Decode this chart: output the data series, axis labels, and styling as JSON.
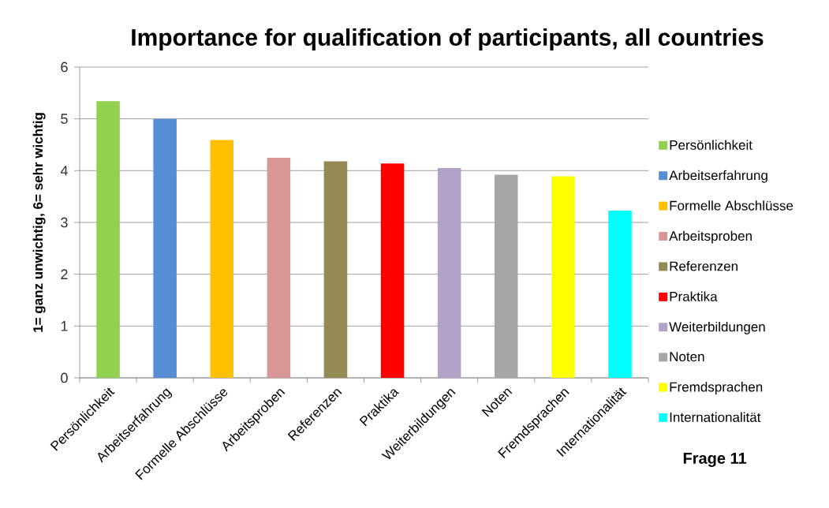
{
  "chart_data": {
    "type": "bar",
    "title": "Importance for qualification of participants, all countries",
    "ylabel": "1= ganz unwichtig, 6= sehr wichtig",
    "categories": [
      "Persönlichkeit",
      "Arbeitserfahrung",
      "Formelle Abschlüsse",
      "Arbeitsproben",
      "Referenzen",
      "Praktika",
      "Weiterbildungen",
      "Noten",
      "Fremdsprachen",
      "Internationalität"
    ],
    "series": [
      {
        "name": "Persönlichkeit",
        "color": "#92d050",
        "values": [
          5.34,
          null,
          null,
          null,
          null,
          null,
          null,
          null,
          null,
          null
        ]
      },
      {
        "name": "Arbeitserfahrung",
        "color": "#558ed5",
        "values": [
          null,
          5.0,
          null,
          null,
          null,
          null,
          null,
          null,
          null,
          null
        ]
      },
      {
        "name": "Formelle Abschlüsse",
        "color": "#ffc000",
        "values": [
          null,
          null,
          4.59,
          null,
          null,
          null,
          null,
          null,
          null,
          null
        ]
      },
      {
        "name": "Arbeitsproben",
        "color": "#d99694",
        "values": [
          null,
          null,
          null,
          4.25,
          null,
          null,
          null,
          null,
          null,
          null
        ]
      },
      {
        "name": "Referenzen",
        "color": "#948a54",
        "values": [
          null,
          null,
          null,
          null,
          4.18,
          null,
          null,
          null,
          null,
          null
        ]
      },
      {
        "name": "Praktika",
        "color": "#ff0000",
        "values": [
          null,
          null,
          null,
          null,
          null,
          4.14,
          null,
          null,
          null,
          null
        ]
      },
      {
        "name": "Weiterbildungen",
        "color": "#b3a2c7",
        "values": [
          null,
          null,
          null,
          null,
          null,
          null,
          4.05,
          null,
          null,
          null
        ]
      },
      {
        "name": "Noten",
        "color": "#a6a6a6",
        "values": [
          null,
          null,
          null,
          null,
          null,
          null,
          null,
          3.92,
          null,
          null
        ]
      },
      {
        "name": "Fremdsprachen",
        "color": "#ffff00",
        "values": [
          null,
          null,
          null,
          null,
          null,
          null,
          null,
          null,
          3.89,
          null
        ]
      },
      {
        "name": "Internationalität",
        "color": "#00ffff",
        "values": [
          null,
          null,
          null,
          null,
          null,
          null,
          null,
          null,
          null,
          3.23
        ]
      }
    ],
    "ylim": [
      0,
      6
    ],
    "yticks": [
      0,
      1,
      2,
      3,
      4,
      5,
      6
    ],
    "grid": "y",
    "legend": "right",
    "annotations": [
      "Frage 11"
    ]
  }
}
